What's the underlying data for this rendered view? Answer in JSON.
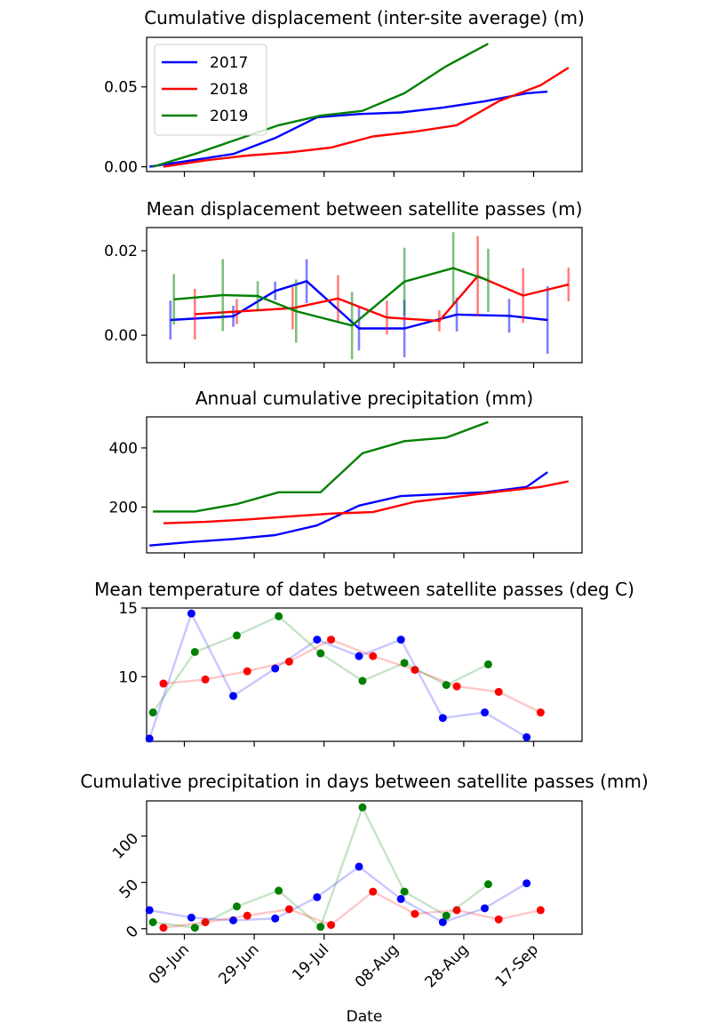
{
  "colors": {
    "2017": "#0000ff",
    "2018": "#ff0000",
    "2019": "#008000"
  },
  "legend": [
    "2017",
    "2018",
    "2019"
  ],
  "xlabel": "Date",
  "x_ticks": [
    {
      "label": "09-Jun",
      "date": "2019-06-09"
    },
    {
      "label": "29-Jun",
      "date": "2019-06-29"
    },
    {
      "label": "19-Jul",
      "date": "2019-07-19"
    },
    {
      "label": "08-Aug",
      "date": "2019-08-08"
    },
    {
      "label": "28-Aug",
      "date": "2019-08-28"
    },
    {
      "label": "17-Sep",
      "date": "2019-09-17"
    }
  ],
  "chart_data": [
    {
      "type": "line",
      "title": "Cumulative displacement (inter-site average) (m)",
      "yticks": [
        {
          "v": 0.0,
          "label": "0.00"
        },
        {
          "v": 0.05,
          "label": "0.05"
        }
      ],
      "ylim": [
        -0.003,
        0.081
      ],
      "legend_placement": "top-left",
      "series": [
        {
          "name": "2017",
          "points": [
            [
              "2019-05-30",
              0.0
            ],
            [
              "2019-06-11",
              0.004
            ],
            [
              "2019-06-23",
              0.008
            ],
            [
              "2019-07-05",
              0.018
            ],
            [
              "2019-07-17",
              0.031
            ],
            [
              "2019-07-29",
              0.033
            ],
            [
              "2019-08-10",
              0.034
            ],
            [
              "2019-08-22",
              0.037
            ],
            [
              "2019-09-03",
              0.041
            ],
            [
              "2019-09-15",
              0.046
            ],
            [
              "2019-09-21",
              0.047
            ]
          ]
        },
        {
          "name": "2018",
          "points": [
            [
              "2019-06-03",
              0.0
            ],
            [
              "2019-06-15",
              0.004
            ],
            [
              "2019-06-27",
              0.007
            ],
            [
              "2019-07-09",
              0.009
            ],
            [
              "2019-07-21",
              0.012
            ],
            [
              "2019-08-02",
              0.019
            ],
            [
              "2019-08-14",
              0.022
            ],
            [
              "2019-08-26",
              0.026
            ],
            [
              "2019-09-07",
              0.041
            ],
            [
              "2019-09-19",
              0.051
            ],
            [
              "2019-09-27",
              0.062
            ]
          ]
        },
        {
          "name": "2019",
          "points": [
            [
              "2019-05-31",
              0.0
            ],
            [
              "2019-06-12",
              0.008
            ],
            [
              "2019-06-24",
              0.017
            ],
            [
              "2019-07-06",
              0.026
            ],
            [
              "2019-07-18",
              0.032
            ],
            [
              "2019-07-30",
              0.035
            ],
            [
              "2019-08-11",
              0.046
            ],
            [
              "2019-08-23",
              0.063
            ],
            [
              "2019-09-04",
              0.077
            ]
          ]
        }
      ]
    },
    {
      "type": "line",
      "title": "Mean displacement between satellite passes (m)",
      "yticks": [
        {
          "v": 0.0,
          "label": "0.00"
        },
        {
          "v": 0.02,
          "label": "0.02"
        }
      ],
      "ylim": [
        -0.0065,
        0.0255
      ],
      "series": [
        {
          "name": "2017",
          "points": [
            [
              "2019-06-05",
              0.0036,
              0.0046
            ],
            [
              "2019-06-23",
              0.0045,
              0.0025
            ],
            [
              "2019-07-05",
              0.0105,
              0.0022
            ],
            [
              "2019-07-14",
              0.0128,
              0.0052
            ],
            [
              "2019-07-29",
              0.0016,
              0.0052
            ],
            [
              "2019-08-11",
              0.0016,
              0.0068
            ],
            [
              "2019-08-26",
              0.0049,
              0.004
            ],
            [
              "2019-09-10",
              0.0046,
              0.004
            ],
            [
              "2019-09-21",
              0.0036,
              0.008
            ]
          ]
        },
        {
          "name": "2018",
          "points": [
            [
              "2019-06-12",
              0.005,
              0.006
            ],
            [
              "2019-06-24",
              0.0056,
              0.003
            ],
            [
              "2019-07-10",
              0.0064,
              0.005
            ],
            [
              "2019-07-23",
              0.0087,
              0.0055
            ],
            [
              "2019-08-06",
              0.0042,
              0.004
            ],
            [
              "2019-08-21",
              0.0034,
              0.0025
            ],
            [
              "2019-09-01",
              0.014,
              0.0095
            ],
            [
              "2019-09-14",
              0.0094,
              0.0065
            ],
            [
              "2019-09-27",
              0.012,
              0.004
            ]
          ]
        },
        {
          "name": "2019",
          "points": [
            [
              "2019-06-06",
              0.0085,
              0.006
            ],
            [
              "2019-06-20",
              0.0095,
              0.0085
            ],
            [
              "2019-06-30",
              0.0093,
              0.0035
            ],
            [
              "2019-07-11",
              0.0057,
              0.0075
            ],
            [
              "2019-07-27",
              0.0023,
              0.008
            ],
            [
              "2019-08-11",
              0.0127,
              0.008
            ],
            [
              "2019-08-25",
              0.0159,
              0.0085
            ],
            [
              "2019-09-04",
              0.013,
              0.0075
            ]
          ]
        }
      ]
    },
    {
      "type": "line",
      "title": "Annual cumulative precipitation (mm)",
      "yticks": [
        {
          "v": 200,
          "label": "200"
        },
        {
          "v": 400,
          "label": "400"
        }
      ],
      "ylim": [
        45,
        505
      ],
      "series": [
        {
          "name": "2017",
          "points": [
            [
              "2019-05-30",
              70
            ],
            [
              "2019-06-11",
              82
            ],
            [
              "2019-06-23",
              92
            ],
            [
              "2019-07-05",
              105
            ],
            [
              "2019-07-17",
              138
            ],
            [
              "2019-07-29",
              205
            ],
            [
              "2019-08-10",
              237
            ],
            [
              "2019-08-22",
              244
            ],
            [
              "2019-09-03",
              250
            ],
            [
              "2019-09-15",
              268
            ],
            [
              "2019-09-21",
              318
            ]
          ]
        },
        {
          "name": "2018",
          "points": [
            [
              "2019-06-03",
              145
            ],
            [
              "2019-06-15",
              150
            ],
            [
              "2019-06-27",
              158
            ],
            [
              "2019-07-09",
              168
            ],
            [
              "2019-07-21",
              178
            ],
            [
              "2019-08-02",
              183
            ],
            [
              "2019-08-14",
              218
            ],
            [
              "2019-08-26",
              235
            ],
            [
              "2019-09-07",
              252
            ],
            [
              "2019-09-19",
              268
            ],
            [
              "2019-09-27",
              287
            ]
          ]
        },
        {
          "name": "2019",
          "points": [
            [
              "2019-05-31",
              185
            ],
            [
              "2019-06-12",
              185
            ],
            [
              "2019-06-24",
              210
            ],
            [
              "2019-07-06",
              250
            ],
            [
              "2019-07-18",
              250
            ],
            [
              "2019-07-30",
              382
            ],
            [
              "2019-08-11",
              423
            ],
            [
              "2019-08-23",
              435
            ],
            [
              "2019-09-04",
              488
            ]
          ]
        }
      ]
    },
    {
      "type": "line",
      "title": "Mean temperature of dates between satellite passes (deg C)",
      "yticks": [
        {
          "v": 10,
          "label": "10"
        },
        {
          "v": 15,
          "label": "15"
        }
      ],
      "ylim": [
        5.3,
        15.0
      ],
      "series": [
        {
          "name": "2017",
          "points": [
            [
              "2019-05-30",
              5.5
            ],
            [
              "2019-06-11",
              14.6
            ],
            [
              "2019-06-23",
              8.6
            ],
            [
              "2019-07-05",
              10.6
            ],
            [
              "2019-07-17",
              12.7
            ],
            [
              "2019-07-29",
              11.5
            ],
            [
              "2019-08-10",
              12.7
            ],
            [
              "2019-08-22",
              7.0
            ],
            [
              "2019-09-03",
              7.4
            ],
            [
              "2019-09-15",
              5.6
            ]
          ]
        },
        {
          "name": "2018",
          "points": [
            [
              "2019-06-03",
              9.5
            ],
            [
              "2019-06-15",
              9.8
            ],
            [
              "2019-06-27",
              10.4
            ],
            [
              "2019-07-09",
              11.1
            ],
            [
              "2019-07-21",
              12.7
            ],
            [
              "2019-08-02",
              11.5
            ],
            [
              "2019-08-14",
              10.5
            ],
            [
              "2019-08-26",
              9.3
            ],
            [
              "2019-09-07",
              8.9
            ],
            [
              "2019-09-19",
              7.4
            ]
          ]
        },
        {
          "name": "2019",
          "points": [
            [
              "2019-05-31",
              7.4
            ],
            [
              "2019-06-12",
              11.8
            ],
            [
              "2019-06-24",
              13.0
            ],
            [
              "2019-07-06",
              14.4
            ],
            [
              "2019-07-18",
              11.7
            ],
            [
              "2019-07-30",
              9.7
            ],
            [
              "2019-08-11",
              11.0
            ],
            [
              "2019-08-23",
              9.4
            ],
            [
              "2019-09-04",
              10.9
            ]
          ]
        }
      ]
    },
    {
      "type": "line",
      "title": "Cumulative precipitation in days between satellite passes (mm)",
      "yticks": [
        {
          "v": 0,
          "label": "0"
        },
        {
          "v": 50,
          "label": "50"
        },
        {
          "v": 100,
          "label": "100"
        }
      ],
      "ylim": [
        -6,
        138
      ],
      "series": [
        {
          "name": "2017",
          "points": [
            [
              "2019-05-30",
              20
            ],
            [
              "2019-06-11",
              12
            ],
            [
              "2019-06-23",
              9
            ],
            [
              "2019-07-05",
              11
            ],
            [
              "2019-07-17",
              34
            ],
            [
              "2019-07-29",
              67
            ],
            [
              "2019-08-10",
              32
            ],
            [
              "2019-08-22",
              7
            ],
            [
              "2019-09-03",
              22
            ],
            [
              "2019-09-15",
              49
            ]
          ]
        },
        {
          "name": "2018",
          "points": [
            [
              "2019-06-03",
              1
            ],
            [
              "2019-06-15",
              7
            ],
            [
              "2019-06-27",
              14
            ],
            [
              "2019-07-09",
              21
            ],
            [
              "2019-07-21",
              4
            ],
            [
              "2019-08-02",
              40
            ],
            [
              "2019-08-14",
              16
            ],
            [
              "2019-08-26",
              20
            ],
            [
              "2019-09-07",
              10
            ],
            [
              "2019-09-19",
              20
            ]
          ]
        },
        {
          "name": "2019",
          "points": [
            [
              "2019-05-31",
              7
            ],
            [
              "2019-06-12",
              1
            ],
            [
              "2019-06-24",
              24
            ],
            [
              "2019-07-06",
              41
            ],
            [
              "2019-07-18",
              2
            ],
            [
              "2019-07-30",
              131
            ],
            [
              "2019-08-11",
              40
            ],
            [
              "2019-08-23",
              14
            ],
            [
              "2019-09-04",
              48
            ]
          ]
        }
      ]
    }
  ]
}
